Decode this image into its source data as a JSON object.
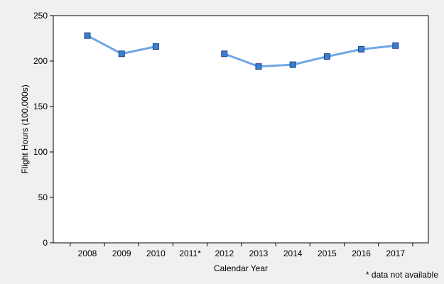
{
  "chart_data": {
    "type": "line",
    "title": "",
    "xlabel": "Calendar Year",
    "ylabel": "Flight Hours (100,000s)",
    "ylim": [
      0,
      250
    ],
    "yticks": [
      0,
      50,
      100,
      150,
      200,
      250
    ],
    "categories": [
      "2008",
      "2009",
      "2010",
      "2011*",
      "2012",
      "2013",
      "2014",
      "2015",
      "2016",
      "2017"
    ],
    "series": [
      {
        "values": [
          228,
          208,
          216,
          null,
          208,
          194,
          196,
          205,
          213,
          217
        ],
        "color": "#6fa8e8",
        "marker_color": "#3a7fd5"
      }
    ],
    "grid": false,
    "legend": "none",
    "footnote": "* data not available"
  }
}
